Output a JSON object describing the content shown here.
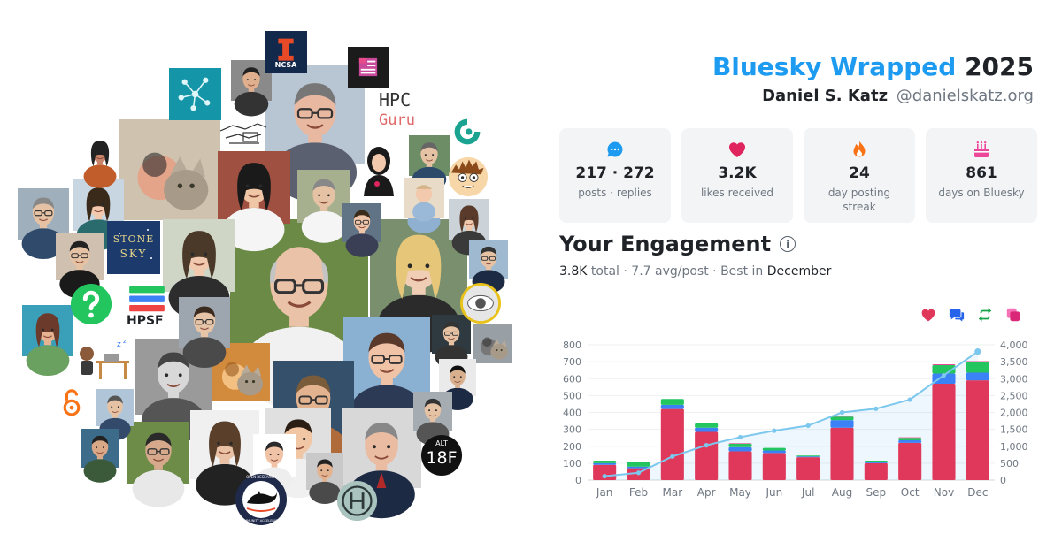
{
  "header": {
    "brand": "Bluesky Wrapped",
    "year": "2025",
    "name": "Daniel S. Katz",
    "handle": "@danielskatz.org"
  },
  "stats": [
    {
      "icon": "speech-bubble-icon",
      "value": "217 · 272",
      "label": "posts · replies",
      "color": "#1d9bf0"
    },
    {
      "icon": "heart-icon",
      "value": "3.2K",
      "label": "likes received",
      "color": "#e0245e"
    },
    {
      "icon": "flame-icon",
      "value": "24",
      "label": "day posting streak",
      "color": "#f97316"
    },
    {
      "icon": "cake-icon",
      "value": "861",
      "label": "days on Bluesky",
      "color": "#ec4899"
    }
  ],
  "engagement": {
    "title": "Your Engagement",
    "info_icon": "info-icon",
    "total": "3.8K",
    "total_word": "total",
    "avg": "7.7 avg/post",
    "best_prefix": "Best in",
    "best_month": "December"
  },
  "avatar_texts": {
    "ncsa": "NCSA",
    "hpc": "HPC",
    "guru": "Guru",
    "stone": "STONE",
    "sky": "SKY",
    "hpsf": "HPSF",
    "alt": "ALT",
    "f18": "18F",
    "orca_top": "OPEN RESEARCH",
    "orca_bottom": "COMMUNITY ACCELERATOR"
  },
  "chart_data": {
    "type": "bar",
    "categories": [
      "Jan",
      "Feb",
      "Mar",
      "Apr",
      "May",
      "Jun",
      "Jul",
      "Aug",
      "Sep",
      "Oct",
      "Nov",
      "Dec"
    ],
    "series": [
      {
        "name": "likes",
        "color": "#e0385b",
        "values": [
          90,
          70,
          420,
          285,
          170,
          160,
          135,
          310,
          100,
          220,
          570,
          590
        ]
      },
      {
        "name": "replies",
        "color": "#3b82f6",
        "values": [
          10,
          10,
          25,
          25,
          25,
          15,
          5,
          45,
          10,
          15,
          60,
          45
        ]
      },
      {
        "name": "reposts",
        "color": "#22c55e",
        "values": [
          15,
          25,
          35,
          25,
          20,
          15,
          5,
          20,
          5,
          15,
          50,
          65
        ]
      },
      {
        "name": "quotes",
        "color": "#ec4899",
        "values": [
          0,
          0,
          0,
          3,
          3,
          0,
          0,
          3,
          0,
          3,
          5,
          3
        ]
      },
      {
        "name": "cumulative",
        "color": "#7cc7ee",
        "axis": "right",
        "values": [
          115,
          215,
          700,
          1030,
          1270,
          1460,
          1610,
          2000,
          2110,
          2380,
          3100,
          3800
        ]
      }
    ],
    "ylim_left": [
      0,
      800
    ],
    "yticks_left": [
      0,
      100,
      200,
      300,
      400,
      500,
      600,
      700,
      800
    ],
    "ylim_right": [
      0,
      4000
    ],
    "yticks_right": [
      "0",
      "500",
      "1,000",
      "1,500",
      "2,000",
      "2,500",
      "3,000",
      "3,500",
      "4,000"
    ],
    "grid": true,
    "legend_icons": [
      "heart-icon",
      "reply-icon",
      "repost-icon",
      "quote-icon"
    ]
  }
}
